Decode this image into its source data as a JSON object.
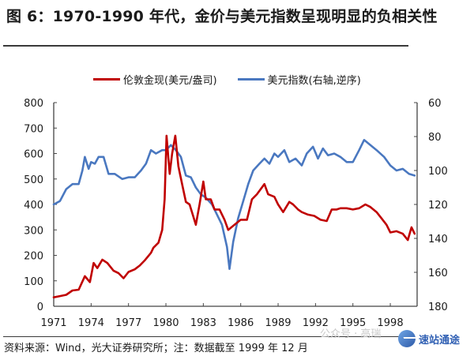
{
  "header": {
    "title": "图 6：1970-1990 年代，金价与美元指数呈现明显的负相关性"
  },
  "footer": {
    "source": "资料来源：Wind，光大证券研究所；注：数据截至 1999 年 12 月",
    "watermark": "公众号 · 高瑞",
    "badge_text": "速站通途"
  },
  "colors": {
    "gold": "#c00000",
    "usd": "#4a78c0",
    "axis": "#444444"
  },
  "chart_data": {
    "type": "line",
    "title": "1970-1990 年代，金价与美元指数呈现明显的负相关性",
    "xlabel": "",
    "ylabel": "伦敦金现(美元/盎司)",
    "y2label": "美元指数(右轴,逆序)",
    "x_ticks": [
      "1971",
      "1974",
      "1977",
      "1980",
      "1983",
      "1986",
      "1989",
      "1992",
      "1995",
      "1998"
    ],
    "y_ticks": [
      0,
      100,
      200,
      300,
      400,
      500,
      600,
      700,
      800
    ],
    "y2_ticks": [
      60,
      80,
      100,
      120,
      140,
      160,
      180
    ],
    "ylim": [
      0,
      800
    ],
    "y2lim": [
      180,
      60
    ],
    "y2_inverted": true,
    "xlim": [
      1971,
      2000.1
    ],
    "grid": false,
    "legend_position": "top",
    "series": [
      {
        "name": "伦敦金现(美元/盎司)",
        "axis": "left",
        "color": "#c00000",
        "x": [
          1971.0,
          1971.5,
          1972.0,
          1972.5,
          1973.0,
          1973.5,
          1973.9,
          1974.2,
          1974.5,
          1974.9,
          1975.3,
          1975.8,
          1976.2,
          1976.6,
          1977.0,
          1977.5,
          1977.9,
          1978.3,
          1978.8,
          1979.0,
          1979.4,
          1979.7,
          1979.9,
          1980.05,
          1980.3,
          1980.5,
          1980.75,
          1981.0,
          1981.3,
          1981.6,
          1981.9,
          1982.4,
          1982.7,
          1983.0,
          1983.2,
          1983.6,
          1983.9,
          1984.3,
          1984.7,
          1985.0,
          1985.5,
          1986.0,
          1986.5,
          1986.9,
          1987.3,
          1987.9,
          1988.2,
          1988.7,
          1989.0,
          1989.4,
          1989.9,
          1990.2,
          1990.6,
          1990.9,
          1991.4,
          1991.9,
          1992.4,
          1992.9,
          1993.3,
          1993.7,
          1994.0,
          1994.5,
          1995.0,
          1995.5,
          1996.0,
          1996.4,
          1996.9,
          1997.3,
          1997.7,
          1998.0,
          1998.5,
          1999.0,
          1999.4,
          1999.7,
          1999.95
        ],
        "values": [
          35,
          40,
          45,
          62,
          65,
          118,
          95,
          170,
          150,
          183,
          170,
          140,
          130,
          110,
          135,
          145,
          160,
          180,
          210,
          230,
          250,
          300,
          420,
          670,
          520,
          600,
          670,
          550,
          480,
          410,
          400,
          320,
          400,
          490,
          420,
          420,
          380,
          380,
          340,
          300,
          320,
          340,
          340,
          420,
          440,
          480,
          440,
          430,
          400,
          370,
          410,
          400,
          380,
          370,
          360,
          355,
          340,
          335,
          380,
          380,
          385,
          385,
          380,
          385,
          400,
          390,
          370,
          345,
          320,
          290,
          295,
          285,
          260,
          310,
          285
        ]
      },
      {
        "name": "美元指数(右轴,逆序)",
        "axis": "right",
        "color": "#4a78c0",
        "x": [
          1971.0,
          1971.5,
          1972.0,
          1972.5,
          1973.0,
          1973.3,
          1973.5,
          1973.8,
          1974.0,
          1974.3,
          1974.6,
          1975.0,
          1975.4,
          1975.9,
          1976.5,
          1977.0,
          1977.5,
          1978.0,
          1978.4,
          1978.8,
          1979.2,
          1979.7,
          1980.0,
          1980.4,
          1980.8,
          1981.2,
          1981.6,
          1982.0,
          1982.4,
          1982.8,
          1983.2,
          1983.7,
          1984.1,
          1984.5,
          1984.9,
          1985.1,
          1985.4,
          1985.8,
          1986.2,
          1986.6,
          1987.0,
          1987.5,
          1987.9,
          1988.3,
          1988.7,
          1989.0,
          1989.5,
          1989.9,
          1990.4,
          1990.9,
          1991.3,
          1991.8,
          1992.2,
          1992.6,
          1993.0,
          1993.5,
          1994.0,
          1994.5,
          1995.0,
          1995.5,
          1995.9,
          1996.4,
          1996.9,
          1997.5,
          1998.0,
          1998.5,
          1999.0,
          1999.5,
          1999.95
        ],
        "values": [
          120,
          118,
          111,
          108,
          108,
          100,
          92,
          99,
          95,
          96,
          92,
          92,
          102,
          102,
          105,
          104,
          104,
          100,
          96,
          88,
          90,
          88,
          88,
          85,
          88,
          92,
          103,
          104,
          110,
          114,
          116,
          120,
          126,
          132,
          145,
          158,
          142,
          128,
          118,
          108,
          100,
          96,
          93,
          96,
          90,
          92,
          88,
          95,
          93,
          97,
          90,
          86,
          93,
          87,
          91,
          90,
          92,
          95,
          95,
          88,
          82,
          85,
          88,
          92,
          97,
          100,
          99,
          102,
          103
        ]
      }
    ]
  }
}
